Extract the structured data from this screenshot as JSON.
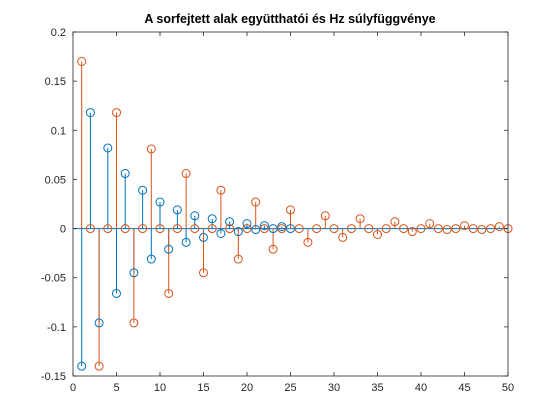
{
  "chart_data": {
    "type": "stem",
    "title": "A sorfejtett alak együtthatói és Hz súlyfüggvénye",
    "xlabel": "",
    "ylabel": "",
    "xlim": [
      0,
      50
    ],
    "ylim": [
      -0.15,
      0.2
    ],
    "x_ticks": [
      0,
      5,
      10,
      15,
      20,
      25,
      30,
      35,
      40,
      45,
      50
    ],
    "x_tick_labels": [
      "0",
      "5",
      "10",
      "15",
      "20",
      "25",
      "30",
      "35",
      "40",
      "45",
      "50"
    ],
    "y_ticks": [
      -0.15,
      -0.1,
      -0.05,
      0,
      0.05,
      0.1,
      0.15,
      0.2
    ],
    "y_tick_labels": [
      "-0.15",
      "-0.1",
      "-0.05",
      "0",
      "0.05",
      "0.1",
      "0.15",
      "0.2"
    ],
    "grid": false,
    "legend": "none",
    "series": [
      {
        "color": "#0072BD",
        "marker": "circle",
        "x": [
          1,
          2,
          3,
          4,
          5,
          6,
          7,
          8,
          9,
          10,
          11,
          12,
          13,
          14,
          15,
          16,
          17,
          18,
          19,
          20,
          21,
          22,
          23,
          24,
          25
        ],
        "y": [
          -0.14,
          0.118,
          -0.096,
          0.082,
          -0.066,
          0.056,
          -0.045,
          0.039,
          -0.031,
          0.027,
          -0.021,
          0.019,
          -0.014,
          0.013,
          -0.009,
          0.01,
          -0.005,
          0.007,
          -0.003,
          0.005,
          -0.001,
          0.003,
          0,
          0.002,
          0
        ]
      },
      {
        "color": "#D95319",
        "marker": "circle",
        "x": [
          1,
          2,
          3,
          4,
          5,
          6,
          7,
          8,
          9,
          10,
          11,
          12,
          13,
          14,
          15,
          16,
          17,
          18,
          19,
          20,
          21,
          22,
          23,
          24,
          25,
          26,
          27,
          28,
          29,
          30,
          31,
          32,
          33,
          34,
          35,
          36,
          37,
          38,
          39,
          40,
          41,
          42,
          43,
          44,
          45,
          46,
          47,
          48,
          49,
          50
        ],
        "y": [
          0.17,
          0,
          -0.14,
          0,
          0.118,
          0,
          -0.096,
          0,
          0.081,
          0,
          -0.066,
          0,
          0.056,
          0,
          -0.045,
          0,
          0.039,
          0,
          -0.031,
          0,
          0.027,
          0,
          -0.021,
          0,
          0.019,
          0,
          -0.014,
          0,
          0.013,
          0,
          -0.009,
          0,
          0.01,
          0,
          -0.006,
          0,
          0.007,
          0,
          -0.003,
          0,
          0.005,
          0,
          -0.001,
          0,
          0.003,
          0,
          -0.001,
          0,
          0.002,
          0
        ]
      }
    ]
  }
}
